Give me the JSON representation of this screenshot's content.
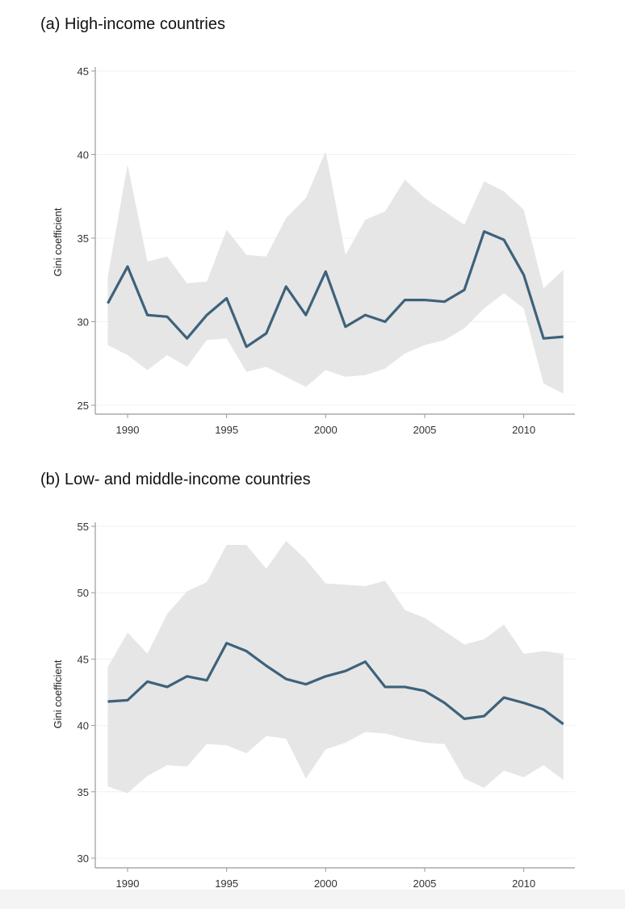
{
  "chart_data": [
    {
      "type": "area",
      "title": "(a) High-income countries",
      "ylabel": "Gini coefficient",
      "xlabel": "",
      "ylim": [
        25,
        45
      ],
      "yticks": [
        25,
        30,
        35,
        40,
        45
      ],
      "xticks": [
        1990,
        1995,
        2000,
        2005,
        2010
      ],
      "xlim": [
        1989,
        2012
      ],
      "grid": true,
      "colors": {
        "line": "#3e627a",
        "band": "#e6e6e6"
      },
      "x": [
        1989,
        1990,
        1991,
        1992,
        1993,
        1994,
        1995,
        1996,
        1997,
        1998,
        1999,
        2000,
        2001,
        2002,
        2003,
        2004,
        2005,
        2006,
        2007,
        2008,
        2009,
        2010,
        2011,
        2012
      ],
      "mean": [
        31.1,
        33.3,
        30.4,
        30.3,
        29.0,
        30.4,
        31.4,
        28.5,
        29.3,
        32.1,
        30.4,
        33.0,
        29.7,
        30.4,
        30.0,
        31.3,
        31.3,
        31.2,
        31.9,
        35.4,
        34.9,
        32.8,
        29.0,
        29.1
      ],
      "upper": [
        32.7,
        39.4,
        33.6,
        33.9,
        32.3,
        32.4,
        35.5,
        34.0,
        33.9,
        36.2,
        37.4,
        40.2,
        34.0,
        36.1,
        36.6,
        38.5,
        37.4,
        36.6,
        35.8,
        38.4,
        37.8,
        36.7,
        32.0,
        33.1
      ],
      "lower": [
        28.6,
        28.0,
        27.1,
        28.0,
        27.3,
        28.9,
        29.0,
        27.0,
        27.3,
        26.7,
        26.1,
        27.1,
        26.7,
        26.8,
        27.2,
        28.1,
        28.6,
        28.9,
        29.6,
        30.8,
        31.7,
        30.8,
        26.3,
        25.7
      ]
    },
    {
      "type": "area",
      "title": "(b) Low- and middle-income countries",
      "ylabel": "Gini coefficient",
      "xlabel": "",
      "ylim": [
        30,
        55
      ],
      "yticks": [
        30,
        35,
        40,
        45,
        50,
        55
      ],
      "xticks": [
        1990,
        1995,
        2000,
        2005,
        2010
      ],
      "xlim": [
        1989,
        2012
      ],
      "grid": true,
      "colors": {
        "line": "#3e627a",
        "band": "#e6e6e6"
      },
      "x": [
        1989,
        1990,
        1991,
        1992,
        1993,
        1994,
        1995,
        1996,
        1997,
        1998,
        1999,
        2000,
        2001,
        2002,
        2003,
        2004,
        2005,
        2006,
        2007,
        2008,
        2009,
        2010,
        2011,
        2012
      ],
      "mean": [
        41.8,
        41.9,
        43.3,
        42.9,
        43.7,
        43.4,
        46.2,
        45.6,
        44.5,
        43.5,
        43.1,
        43.7,
        44.1,
        44.8,
        42.9,
        42.9,
        42.6,
        41.7,
        40.5,
        40.7,
        42.1,
        41.7,
        41.2,
        40.1
      ],
      "upper": [
        44.4,
        47.0,
        45.4,
        48.4,
        50.1,
        50.8,
        53.6,
        53.6,
        51.8,
        53.9,
        52.5,
        50.7,
        50.6,
        50.5,
        50.9,
        48.7,
        48.1,
        47.1,
        46.1,
        46.5,
        47.6,
        45.4,
        45.6,
        45.4
      ],
      "lower": [
        35.4,
        34.9,
        36.2,
        37.0,
        36.9,
        38.6,
        38.5,
        37.9,
        39.2,
        39.0,
        36.0,
        38.2,
        38.7,
        39.5,
        39.4,
        39.0,
        38.7,
        38.6,
        36.0,
        35.3,
        36.6,
        36.1,
        37.0,
        35.9
      ]
    }
  ]
}
